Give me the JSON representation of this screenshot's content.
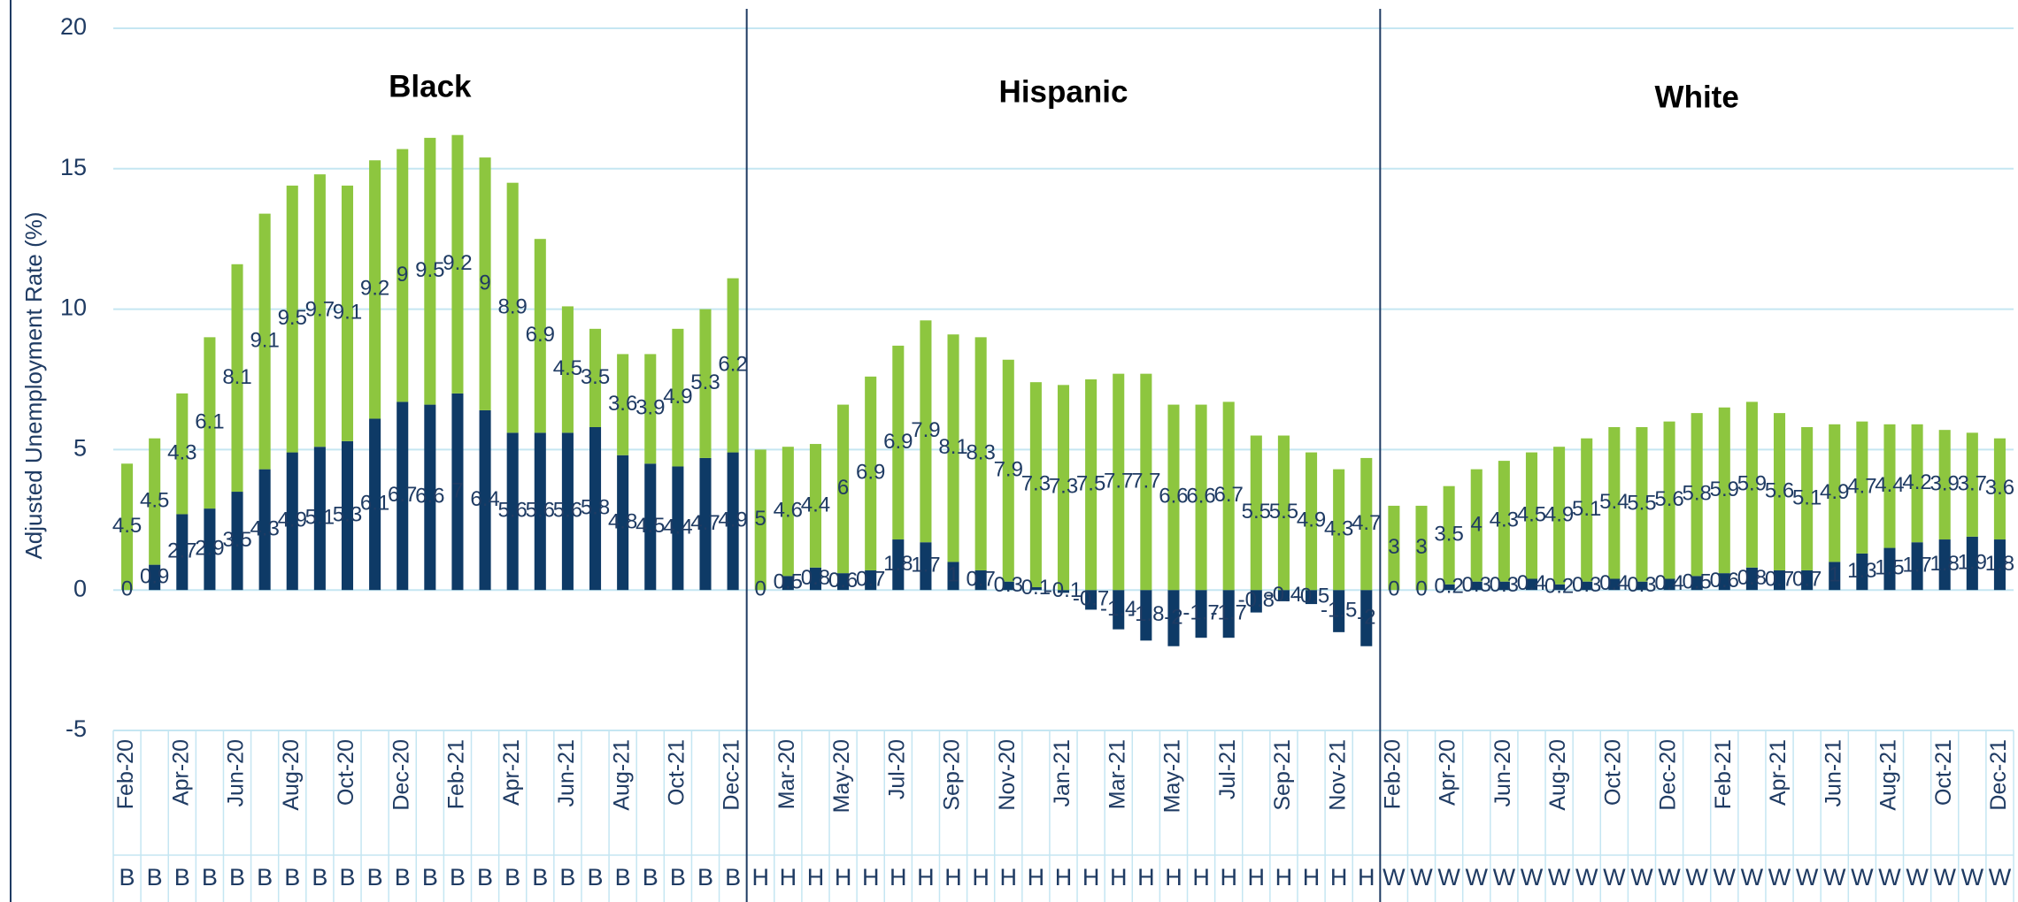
{
  "chart_data": {
    "type": "bar",
    "y_label": "Adjusted Unemployment Rate (%)",
    "annotations": [
      "Black",
      "Hispanic",
      "White"
    ],
    "ylim": [
      -5,
      20
    ],
    "yticks": [
      -5,
      0,
      5,
      10,
      15,
      20
    ],
    "grid": true,
    "stacked": true,
    "categories": [
      "Feb-20",
      null,
      "Apr-20",
      null,
      "Jun-20",
      null,
      "Aug-20",
      null,
      "Oct-20",
      null,
      "Dec-20",
      null,
      "Feb-21",
      null,
      "Apr-21",
      null,
      "Jun-21",
      null,
      "Aug-21",
      null,
      "Oct-21",
      null,
      "Dec-21",
      null,
      "Mar-20",
      null,
      "May-20",
      null,
      "Jul-20",
      null,
      "Sep-20",
      null,
      "Nov-20",
      null,
      "Jan-21",
      null,
      "Mar-21",
      null,
      "May-21",
      null,
      "Jul-21",
      null,
      "Sep-21",
      null,
      "Nov-21",
      null,
      "Feb-20",
      null,
      "Apr-20",
      null,
      "Jun-20",
      null,
      "Aug-20",
      null,
      "Oct-20",
      null,
      "Dec-20",
      null,
      "Feb-21",
      null,
      "Apr-21",
      null,
      "Jun-21",
      null,
      "Aug-21",
      null,
      "Oct-21",
      null,
      "Dec-21"
    ],
    "group_labels": [
      "B",
      "B",
      "B",
      "B",
      "B",
      "B",
      "B",
      "B",
      "B",
      "B",
      "B",
      "B",
      "B",
      "B",
      "B",
      "B",
      "B",
      "B",
      "B",
      "B",
      "B",
      "B",
      "B",
      "H",
      "H",
      "H",
      "H",
      "H",
      "H",
      "H",
      "H",
      "H",
      "H",
      "H",
      "H",
      "H",
      "H",
      "H",
      "H",
      "H",
      "H",
      "H",
      "H",
      "H",
      "H",
      "H",
      "W",
      "W",
      "W",
      "W",
      "W",
      "W",
      "W",
      "W",
      "W",
      "W",
      "W",
      "W",
      "W",
      "W",
      "W",
      "W",
      "W",
      "W",
      "W",
      "W",
      "W",
      "W",
      "W"
    ],
    "series": [
      {
        "color": "#0e3a66",
        "values": [
          0,
          0.9,
          2.7,
          2.9,
          3.5,
          4.3,
          4.9,
          5.1,
          5.3,
          6.1,
          6.7,
          6.6,
          7,
          6.4,
          5.6,
          5.6,
          5.6,
          5.8,
          4.8,
          4.5,
          4.4,
          4.7,
          4.9,
          0,
          0.5,
          0.8,
          0.6,
          0.7,
          1.8,
          1.7,
          1,
          0.7,
          0.3,
          0.1,
          -0.1,
          -0.7,
          -1.4,
          -1.8,
          -2,
          -1.7,
          -1.7,
          -0.8,
          -0.4,
          -0.5,
          -1.5,
          -2,
          0,
          0,
          0.2,
          0.3,
          0.3,
          0.4,
          0.2,
          0.3,
          0.4,
          0.3,
          0.4,
          0.5,
          0.6,
          0.8,
          0.7,
          0.7,
          1,
          1.3,
          1.5,
          1.7,
          1.8,
          1.9,
          1.8
        ]
      },
      {
        "color": "#8dc63f",
        "values": [
          4.5,
          4.5,
          4.3,
          6.1,
          8.1,
          9.1,
          9.5,
          9.7,
          9.1,
          9.2,
          9,
          9.5,
          9.2,
          9,
          8.9,
          6.9,
          4.5,
          3.5,
          3.6,
          3.9,
          4.9,
          5.3,
          6.2,
          5,
          4.6,
          4.4,
          6,
          6.9,
          6.9,
          7.9,
          8.1,
          8.3,
          7.9,
          7.3,
          7.3,
          7.5,
          7.7,
          7.7,
          6.6,
          6.6,
          6.7,
          5.5,
          5.5,
          4.9,
          4.3,
          4.7,
          3,
          3,
          3.5,
          4,
          4.3,
          4.5,
          4.9,
          5.1,
          5.4,
          5.5,
          5.6,
          5.8,
          5.9,
          5.9,
          5.6,
          5.1,
          4.9,
          4.7,
          4.4,
          4.2,
          3.9,
          3.7,
          3.6
        ]
      }
    ]
  }
}
